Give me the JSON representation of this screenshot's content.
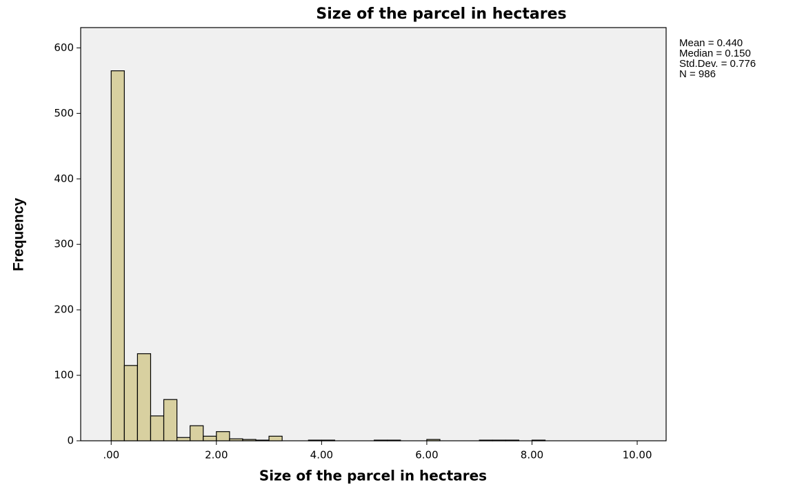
{
  "chart_data": {
    "type": "histogram",
    "title": "Size of the parcel in hectares",
    "x_label": "Size of the parcel in hectares",
    "y_label": "Frequency",
    "annotations": [
      "Mean = 0.440",
      "Median = 0.150",
      "Std.Dev. = 0.776",
      "N = 986"
    ],
    "bins": [
      0,
      0.25,
      0.5,
      0.75,
      1,
      1.25,
      1.5,
      1.75,
      2,
      2.25,
      2.5,
      2.75,
      3,
      3.25,
      3.5,
      3.75,
      4,
      4.25,
      4.5,
      4.75,
      5,
      5.25,
      5.5,
      5.75,
      6,
      6.25,
      6.5,
      6.75,
      7,
      7.25,
      7.5,
      7.75,
      8,
      8.25
    ],
    "values": [
      565,
      115,
      133,
      38,
      63,
      5,
      23,
      7,
      14,
      3,
      2,
      1,
      7,
      0,
      0,
      1,
      1,
      0,
      0,
      0,
      1,
      1,
      0,
      0,
      2,
      0,
      0,
      0,
      1,
      1,
      1,
      0,
      1
    ],
    "color": "#d8d0a0",
    "xlim": [
      -0.58,
      10.55
    ],
    "ylim": [
      0,
      631
    ],
    "xticks": [
      {
        "value": 0,
        "label": ".00"
      },
      {
        "value": 2,
        "label": "2.00"
      },
      {
        "value": 4,
        "label": "4.00"
      },
      {
        "value": 6,
        "label": "6.00"
      },
      {
        "value": 8,
        "label": "8.00"
      },
      {
        "value": 10,
        "label": "10.00"
      }
    ],
    "yticks": [
      0,
      100,
      200,
      300,
      400,
      500,
      600
    ],
    "background": "#f0f0f0"
  }
}
